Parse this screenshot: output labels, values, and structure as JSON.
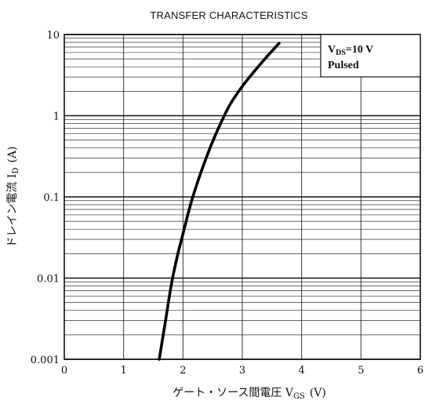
{
  "chart_data": {
    "type": "line",
    "title": "TRANSFER CHARACTERISTICS",
    "xlabel": "ゲート・ソース間電圧 V",
    "xlabel_subscript": "GS",
    "xlabel_unit": "(V)",
    "ylabel": "ドレイン電流 I",
    "ylabel_subscript": "D",
    "ylabel_unit": "(A)",
    "xlim": [
      0,
      6
    ],
    "ylim": [
      0.001,
      10
    ],
    "y_scale": "log",
    "grid": true,
    "x_ticks": [
      "0",
      "1",
      "2",
      "3",
      "4",
      "5",
      "6"
    ],
    "y_ticks": [
      {
        "value": 0.001,
        "label": "0.001"
      },
      {
        "value": 0.01,
        "label": "0.01"
      },
      {
        "value": 0.1,
        "label": "0.1"
      },
      {
        "value": 1,
        "label": "1"
      },
      {
        "value": 10,
        "label": "10"
      }
    ],
    "legend": {
      "placement": "top-right",
      "condition_main": "V",
      "condition_sub": "DS",
      "condition_value": "=10 V",
      "mode": "Pulsed"
    },
    "series": [
      {
        "x": [
          1.6,
          1.7,
          1.8,
          1.9,
          2.0,
          2.1,
          2.2,
          2.35,
          2.5,
          2.65,
          2.8,
          3.0,
          3.2,
          3.4,
          3.62
        ],
        "y": [
          0.001,
          0.0028,
          0.008,
          0.018,
          0.035,
          0.068,
          0.12,
          0.25,
          0.48,
          0.85,
          1.4,
          2.3,
          3.5,
          5.2,
          7.8
        ]
      }
    ]
  }
}
